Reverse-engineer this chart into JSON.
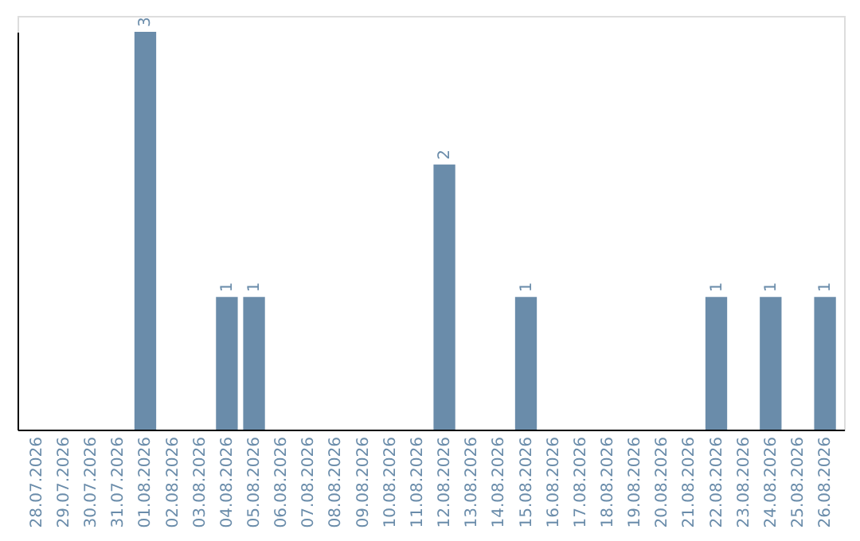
{
  "chart_data": {
    "type": "bar",
    "categories": [
      "28.07.2026",
      "29.07.2026",
      "30.07.2026",
      "31.07.2026",
      "01.08.2026",
      "02.08.2026",
      "03.08.2026",
      "04.08.2026",
      "05.08.2026",
      "06.08.2026",
      "07.08.2026",
      "08.08.2026",
      "09.08.2026",
      "10.08.2026",
      "11.08.2026",
      "12.08.2026",
      "13.08.2026",
      "14.08.2026",
      "15.08.2026",
      "16.08.2026",
      "17.08.2026",
      "18.08.2026",
      "19.08.2026",
      "20.08.2026",
      "21.08.2026",
      "22.08.2026",
      "23.08.2026",
      "24.08.2026",
      "25.08.2026",
      "26.08.2026"
    ],
    "values": [
      0,
      0,
      0,
      0,
      3,
      0,
      0,
      1,
      1,
      0,
      0,
      0,
      0,
      0,
      0,
      2,
      0,
      0,
      1,
      0,
      0,
      0,
      0,
      0,
      0,
      1,
      0,
      1,
      0,
      1
    ],
    "value_labels": [
      null,
      null,
      null,
      null,
      "3",
      null,
      null,
      "1",
      "1",
      null,
      null,
      null,
      null,
      null,
      null,
      "2",
      null,
      null,
      "1",
      null,
      null,
      null,
      null,
      null,
      null,
      "1",
      null,
      "1",
      null,
      "1"
    ],
    "color": "#6a8caa"
  }
}
